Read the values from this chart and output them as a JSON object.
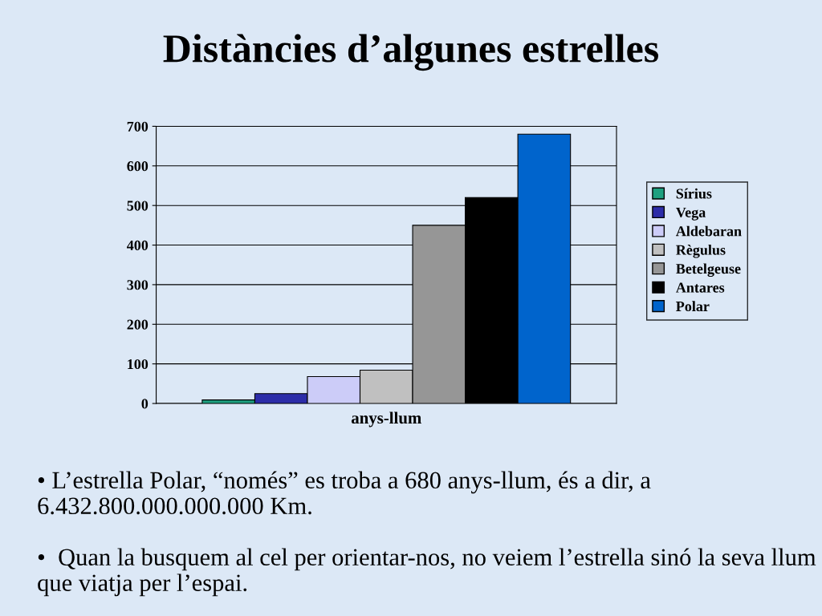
{
  "chart_data": {
    "type": "bar",
    "title": "Distàncies d’algunes estrelles",
    "xlabel": "anys-llum",
    "categories": [
      null
    ],
    "series": [
      {
        "name": "Sírius",
        "color": "#1fa080",
        "values": [
          9
        ]
      },
      {
        "name": "Vega",
        "color": "#2c2ca8",
        "values": [
          25
        ]
      },
      {
        "name": "Aldebaran",
        "color": "#ccccf8",
        "values": [
          68
        ]
      },
      {
        "name": "Règulus",
        "color": "#c0c0c0",
        "values": [
          84
        ]
      },
      {
        "name": "Betelgeuse",
        "color": "#969696",
        "values": [
          450
        ]
      },
      {
        "name": "Antares",
        "color": "#000000",
        "values": [
          520
        ]
      },
      {
        "name": "Polar",
        "color": "#0064cc",
        "values": [
          680
        ]
      }
    ],
    "ylim": [
      0,
      700
    ],
    "yticks": [
      0,
      100,
      200,
      300,
      400,
      500,
      600,
      700
    ],
    "grid": "y",
    "legend": "right",
    "annotations": [
      "• L’estrella Polar, “només” es troba a 680 anys-llum, és a dir, a 6.432.800.000.000.000 Km.",
      "•  Quan la busquem al cel per orientar-nos, no veiem l’estrella sinó la seva llum que viatja per l’espai."
    ]
  }
}
